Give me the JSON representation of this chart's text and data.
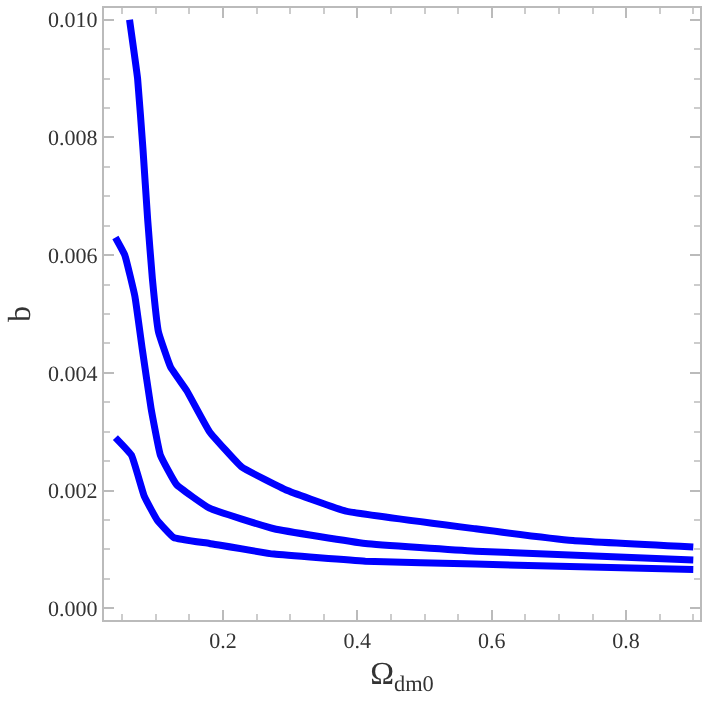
{
  "chart_data": {
    "type": "line",
    "xlabel": "Ω$_{dm0}$",
    "ylabel": "b",
    "xlim": [
      0.023,
      0.91
    ],
    "ylim": [
      -0.0002,
      0.0102
    ],
    "xticks": [
      {
        "value": 0.2,
        "label": "0.2"
      },
      {
        "value": 0.4,
        "label": "0.4"
      },
      {
        "value": 0.6,
        "label": "0.6"
      },
      {
        "value": 0.8,
        "label": "0.8"
      }
    ],
    "yticks": [
      {
        "value": 0,
        "label": "0.000"
      },
      {
        "value": 0.002,
        "label": "0.002"
      },
      {
        "value": 0.004,
        "label": "0.004"
      },
      {
        "value": 0.006,
        "label": "0.006"
      },
      {
        "value": 0.008,
        "label": "0.008"
      },
      {
        "value": 0.01,
        "label": "0.010"
      }
    ],
    "grid": false,
    "line_style": "solid",
    "marker": "none",
    "series": [
      {
        "color": "#0000ff",
        "x": [
          0.061,
          0.073,
          0.081,
          0.088,
          0.095,
          0.104,
          0.122,
          0.146,
          0.18,
          0.228,
          0.296,
          0.383,
          0.576,
          0.721,
          0.9
        ],
        "values": [
          0.01,
          0.009,
          0.0078,
          0.0066,
          0.0056,
          0.0047,
          0.0041,
          0.0037,
          0.003,
          0.0024,
          0.002,
          0.00165,
          0.00135,
          0.00115,
          0.00104
        ]
      },
      {
        "color": "#0000ff",
        "x": [
          0.04,
          0.054,
          0.069,
          0.08,
          0.093,
          0.107,
          0.131,
          0.18,
          0.276,
          0.412,
          0.576,
          0.9
        ],
        "values": [
          0.0063,
          0.006,
          0.0053,
          0.0044,
          0.0034,
          0.0026,
          0.0021,
          0.0017,
          0.00135,
          0.0011,
          0.00097,
          0.00082
        ]
      },
      {
        "color": "#0000ff",
        "x": [
          0.04,
          0.064,
          0.083,
          0.102,
          0.127,
          0.18,
          0.276,
          0.412,
          0.576,
          0.9
        ],
        "values": [
          0.0029,
          0.0026,
          0.0019,
          0.0015,
          0.0012,
          0.0011,
          0.00092,
          0.0008,
          0.00075,
          0.00066
        ]
      }
    ]
  }
}
